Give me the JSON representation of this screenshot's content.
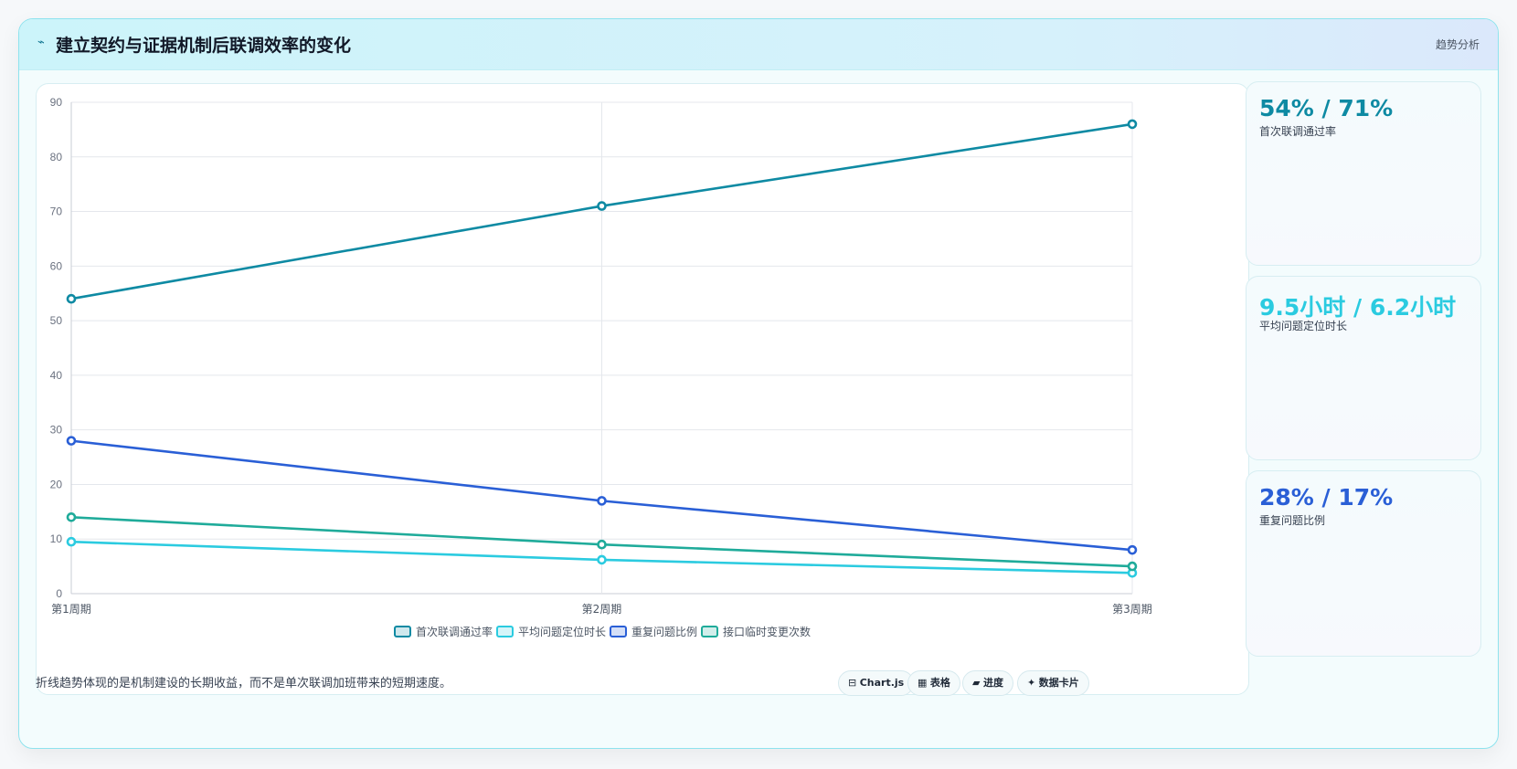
{
  "header": {
    "icon": "chart-line-icon",
    "title": "建立契约与证据机制后联调效率的变化",
    "tag": "趋势分析"
  },
  "chart_data": {
    "type": "line",
    "categories": [
      "第1周期",
      "第2周期",
      "第3周期"
    ],
    "ylim": [
      0,
      90
    ],
    "yticks": [
      0,
      10,
      20,
      30,
      40,
      50,
      60,
      70,
      80,
      90
    ],
    "grid": true,
    "legend_position": "bottom",
    "series": [
      {
        "name": "首次联调通过率",
        "values": [
          54,
          71,
          86
        ],
        "color": "#0e8aa3"
      },
      {
        "name": "平均问题定位时长",
        "values": [
          9.5,
          6.2,
          3.8
        ],
        "color": "#2bcbe0"
      },
      {
        "name": "重复问题比例",
        "values": [
          28,
          17,
          8
        ],
        "color": "#2a5fd6"
      },
      {
        "name": "接口临时变更次数",
        "values": [
          14,
          9,
          5
        ],
        "color": "#1fab9a"
      }
    ]
  },
  "stats": [
    {
      "value": "54% / 71%",
      "label": "首次联调通过率",
      "color": "#0e8aa3"
    },
    {
      "value": "9.5小时 / 6.2小时",
      "label": "平均问题定位时长",
      "color": "#2bcbe0"
    },
    {
      "value": "28% / 17%",
      "label": "重复问题比例",
      "color": "#2a5fd6"
    }
  ],
  "footer": {
    "note": "折线趋势体现的是机制建设的长期收益，而不是单次联调加班带来的短期速度。",
    "pills": [
      {
        "icon": "chart-icon",
        "glyph": "⊟",
        "label": "Chart.js"
      },
      {
        "icon": "table-icon",
        "glyph": "▦",
        "label": "表格"
      },
      {
        "icon": "progress-icon",
        "glyph": "▰",
        "label": "进度"
      },
      {
        "icon": "card-icon",
        "glyph": "✦",
        "label": "数据卡片"
      }
    ]
  }
}
